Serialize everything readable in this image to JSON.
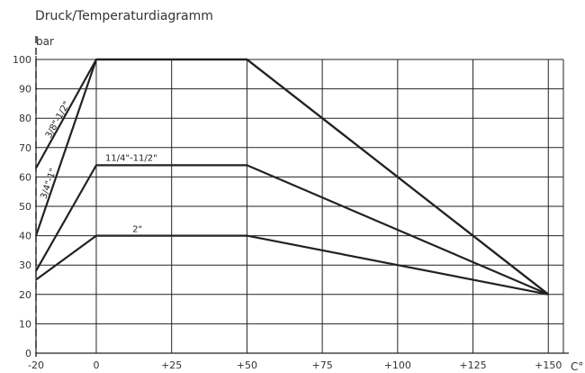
{
  "chart_data": {
    "type": "line",
    "title": "Druck/Temperaturdiagramm",
    "ylabel": "bar",
    "xlabel": "C°",
    "xlim": [
      -20,
      155
    ],
    "ylim": [
      0,
      100
    ],
    "x_ticks": [
      "-20",
      "0",
      "+25",
      "+50",
      "+75",
      "+100",
      "+125",
      "+150"
    ],
    "x_tick_values": [
      -20,
      0,
      25,
      50,
      75,
      100,
      125,
      150
    ],
    "y_ticks": [
      "0",
      "10",
      "20",
      "30",
      "40",
      "50",
      "60",
      "70",
      "80",
      "90",
      "100"
    ],
    "y_tick_values": [
      0,
      10,
      20,
      30,
      40,
      50,
      60,
      70,
      80,
      90,
      100
    ],
    "grid": true,
    "reference_line": {
      "x": -20,
      "style": "dashed"
    },
    "series": [
      {
        "name": "3/8\"-1/2\"",
        "x": [
          -20,
          0,
          50,
          150
        ],
        "y": [
          63,
          100,
          100,
          20
        ]
      },
      {
        "name": "3/4\"-1\"",
        "x": [
          -20,
          0,
          50,
          150
        ],
        "y": [
          40,
          100,
          100,
          20
        ]
      },
      {
        "name": "11/4\"-11/2\"",
        "x": [
          -20,
          0,
          50,
          150
        ],
        "y": [
          28,
          64,
          64,
          20
        ]
      },
      {
        "name": "2\"",
        "x": [
          -20,
          0,
          50,
          150
        ],
        "y": [
          25,
          40,
          40,
          20
        ]
      }
    ]
  }
}
